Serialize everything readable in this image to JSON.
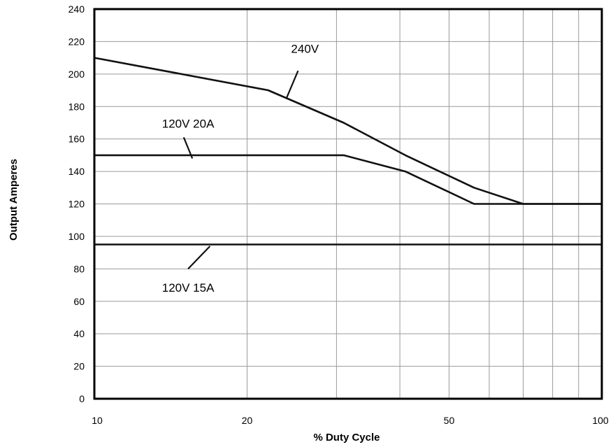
{
  "chart_data": {
    "type": "line",
    "title": "",
    "xlabel": "% Duty Cycle",
    "ylabel": "Output Amperes",
    "xscale": "log",
    "xlim": [
      10,
      100
    ],
    "ylim": [
      0,
      240
    ],
    "grid": true,
    "legend": "none",
    "x_tick_labels": [
      {
        "value": 10,
        "label": "10"
      },
      {
        "value": 20,
        "label": "20"
      },
      {
        "value": 50,
        "label": "50"
      },
      {
        "value": 100,
        "label": "100"
      }
    ],
    "x_gridlines": [
      10,
      20,
      30,
      40,
      50,
      60,
      70,
      80,
      90,
      100
    ],
    "y_ticks": [
      0,
      20,
      40,
      60,
      80,
      100,
      120,
      140,
      160,
      180,
      200,
      220,
      240
    ],
    "series": [
      {
        "name": "240V",
        "points": [
          [
            10,
            210
          ],
          [
            22,
            190
          ],
          [
            31,
            170
          ],
          [
            41,
            150
          ],
          [
            56,
            130
          ],
          [
            70,
            120
          ],
          [
            100,
            120
          ]
        ]
      },
      {
        "name": "120V 20A",
        "points": [
          [
            10,
            150
          ],
          [
            31,
            150
          ],
          [
            41,
            140
          ],
          [
            56,
            120
          ],
          [
            70,
            120
          ],
          [
            100,
            120
          ]
        ]
      },
      {
        "name": "120V 15A",
        "points": [
          [
            10,
            95
          ],
          [
            100,
            95
          ]
        ]
      }
    ],
    "annotations": [
      {
        "text": "240V",
        "label_at": [
          26,
          213
        ],
        "line_from": [
          25.2,
          202
        ],
        "line_to": [
          23.9,
          185
        ]
      },
      {
        "text": "120V 20A",
        "label_at": [
          15.3,
          167
        ],
        "line_from": [
          15.0,
          161
        ],
        "line_to": [
          15.6,
          148
        ]
      },
      {
        "text": "120V 15A",
        "label_at": [
          15.3,
          66
        ],
        "line_from": [
          15.3,
          80
        ],
        "line_to": [
          16.9,
          94
        ]
      }
    ],
    "colors": {
      "line": "#111111",
      "grid": "#9a9a9a",
      "frame": "#000000"
    }
  }
}
